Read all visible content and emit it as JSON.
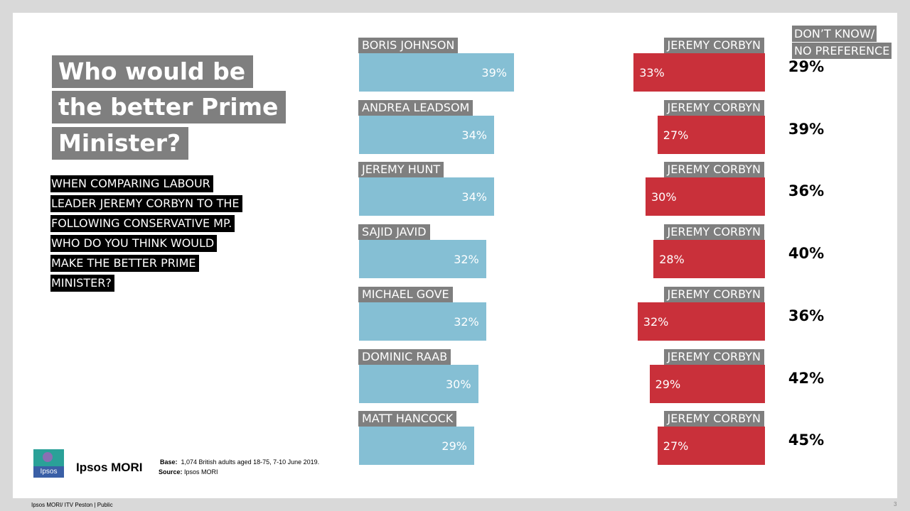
{
  "title_lines": [
    "Who would be",
    "the better Prime",
    "Minister?"
  ],
  "question_lines": [
    "WHEN COMPARING LABOUR",
    "LEADER JEREMY CORBYN TO THE",
    "FOLLOWING CONSERVATIVE MP.",
    "WHO DO YOU THINK WOULD",
    "MAKE THE BETTER PRIME",
    "MINISTER?"
  ],
  "dont_know_header": [
    "DON’T KNOW/",
    "NO PREFERENCE"
  ],
  "chart_data": {
    "type": "bar",
    "title": "Who would be the better Prime Minister?",
    "categories": [
      "BORIS JOHNSON",
      "ANDREA LEADSOM",
      "JEREMY HUNT",
      "SAJID JAVID",
      "MICHAEL GOVE",
      "DOMINIC RAAB",
      "MATT HANCOCK"
    ],
    "opponent": "JEREMY CORBYN",
    "series": [
      {
        "name": "Conservative MP",
        "color": "#85bfd4",
        "values": [
          39,
          34,
          34,
          32,
          32,
          30,
          29
        ]
      },
      {
        "name": "JEREMY CORBYN",
        "color": "#c9303a",
        "values": [
          33,
          27,
          30,
          28,
          32,
          29,
          27
        ]
      },
      {
        "name": "DON’T KNOW/ NO PREFERENCE",
        "values": [
          29,
          39,
          36,
          40,
          36,
          42,
          45
        ]
      }
    ],
    "unit": "%"
  },
  "logo": {
    "text": "Ipsos",
    "color": "#2aa198"
  },
  "brand_name": "Ipsos MORI",
  "base": {
    "label": "Base:",
    "text": "1,074 British adults aged 18-75, 7-10 June 2019."
  },
  "source": {
    "label": "Source:",
    "text": "Ipsos MORI"
  },
  "footer": "Ipsos MORI/ ITV Peston | Public",
  "page_number": "3"
}
